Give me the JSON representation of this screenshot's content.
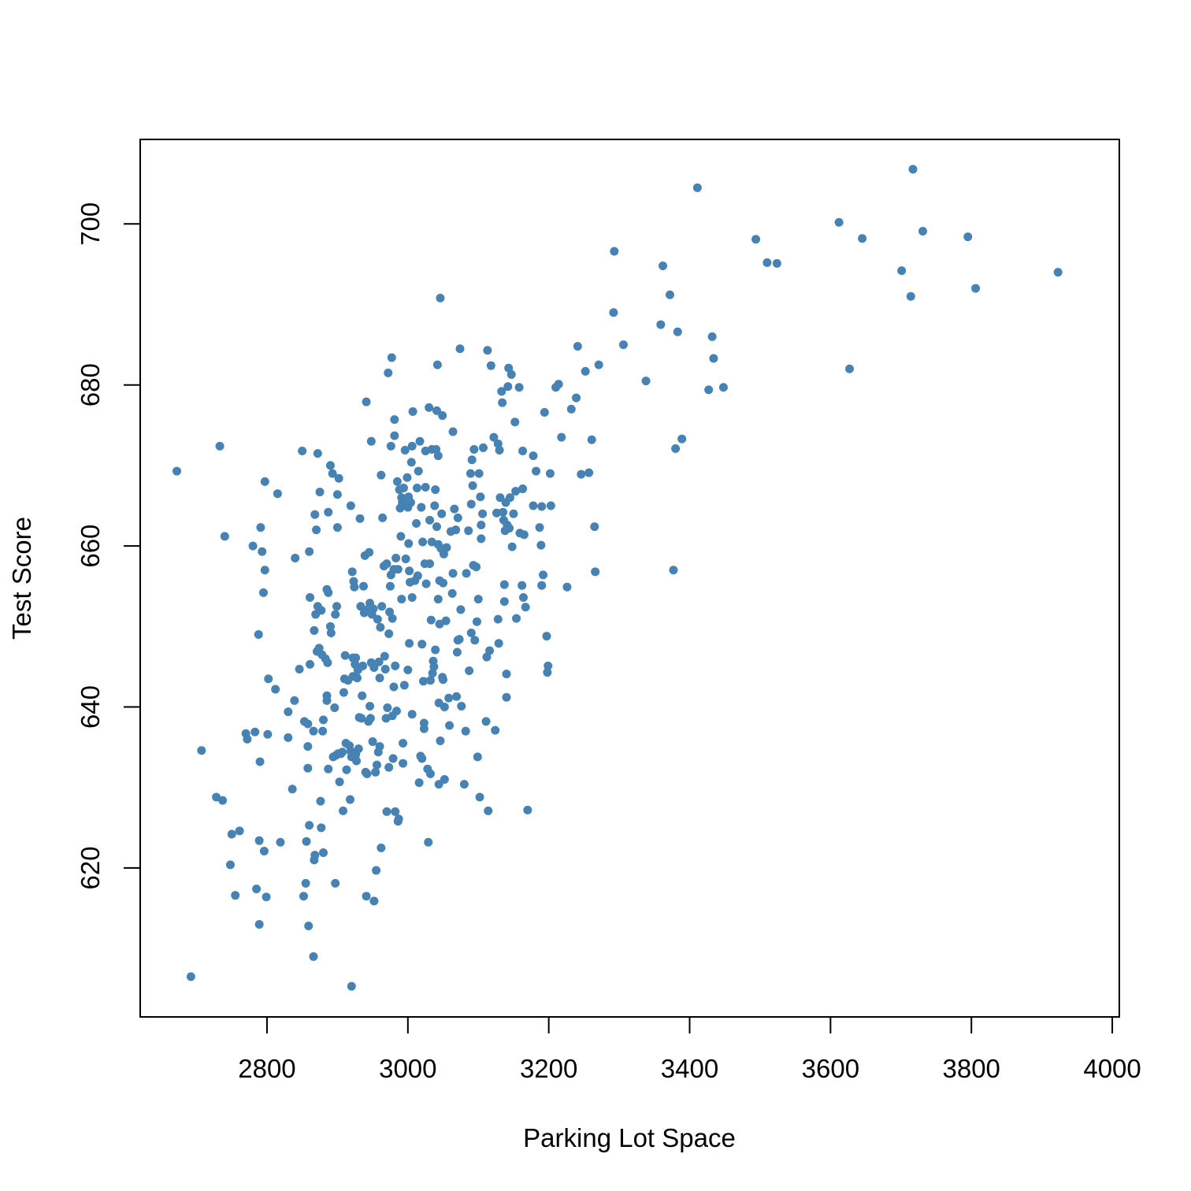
{
  "chart_data": {
    "type": "scatter",
    "title": "",
    "xlabel": "Parking Lot Space",
    "ylabel": "Test Score",
    "xlim": [
      2620,
      4010
    ],
    "ylim": [
      601.5,
      710.5
    ],
    "x_ticks": [
      2800,
      3000,
      3200,
      3400,
      3600,
      3800,
      4000
    ],
    "y_ticks": [
      620,
      640,
      660,
      680,
      700
    ],
    "x_tick_labels": [
      "2800",
      "3000",
      "3200",
      "3400",
      "3600",
      "3800",
      "4000"
    ],
    "y_tick_labels": [
      "620",
      "640",
      "660",
      "680",
      "700"
    ],
    "grid": false,
    "legend": "none",
    "colors": {
      "points": "#4682b4",
      "axes": "#000000"
    },
    "points": [
      [
        2672,
        669.3
      ],
      [
        2692,
        606.5
      ],
      [
        2707,
        634.6
      ],
      [
        2728,
        628.8
      ],
      [
        2733,
        672.4
      ],
      [
        2737,
        628.4
      ],
      [
        2740,
        661.2
      ],
      [
        2748,
        620.4
      ],
      [
        2750,
        624.2
      ],
      [
        2755,
        616.6
      ],
      [
        2761,
        624.6
      ],
      [
        2770,
        636.7
      ],
      [
        2772,
        636.0
      ],
      [
        2780,
        660.0
      ],
      [
        2783,
        636.9
      ],
      [
        2785,
        617.4
      ],
      [
        2788,
        649.0
      ],
      [
        2789,
        623.4
      ],
      [
        2789,
        613.0
      ],
      [
        2790,
        633.2
      ],
      [
        2791,
        662.3
      ],
      [
        2793,
        659.3
      ],
      [
        2795,
        654.2
      ],
      [
        2796,
        622.1
      ],
      [
        2797,
        657.0
      ],
      [
        2797,
        668.0
      ],
      [
        2799,
        616.4
      ],
      [
        2801,
        636.6
      ],
      [
        2802,
        643.5
      ],
      [
        2812,
        642.2
      ],
      [
        2815,
        666.5
      ],
      [
        2819,
        623.2
      ],
      [
        2830,
        636.2
      ],
      [
        2830,
        639.4
      ],
      [
        2836,
        629.8
      ],
      [
        2839,
        640.8
      ],
      [
        2840,
        658.5
      ],
      [
        2846,
        644.7
      ],
      [
        2850,
        671.8
      ],
      [
        2852,
        616.5
      ],
      [
        2853,
        638.2
      ],
      [
        2855,
        618.1
      ],
      [
        2856,
        623.3
      ],
      [
        2858,
        637.9
      ],
      [
        2858,
        632.4
      ],
      [
        2858,
        635.1
      ],
      [
        2859,
        612.8
      ],
      [
        2860,
        625.3
      ],
      [
        2860,
        659.3
      ],
      [
        2861,
        653.6
      ],
      [
        2861,
        645.3
      ],
      [
        2866,
        637.0
      ],
      [
        2866,
        609.0
      ],
      [
        2867,
        649.5
      ],
      [
        2867,
        621.0
      ],
      [
        2868,
        663.9
      ],
      [
        2868,
        621.6
      ],
      [
        2869,
        651.5
      ],
      [
        2870,
        662.0
      ],
      [
        2871,
        646.9
      ],
      [
        2872,
        652.5
      ],
      [
        2872,
        671.5
      ],
      [
        2874,
        647.3
      ],
      [
        2875,
        666.7
      ],
      [
        2876,
        628.3
      ],
      [
        2877,
        625.0
      ],
      [
        2877,
        652.0
      ],
      [
        2878,
        646.5
      ],
      [
        2879,
        637.0
      ],
      [
        2880,
        621.9
      ],
      [
        2880,
        638.4
      ],
      [
        2883,
        646.0
      ],
      [
        2885,
        640.8
      ],
      [
        2885,
        641.4
      ],
      [
        2885,
        654.6
      ],
      [
        2886,
        645.5
      ],
      [
        2887,
        632.3
      ],
      [
        2887,
        664.2
      ],
      [
        2887,
        654.2
      ],
      [
        2890,
        670.0
      ],
      [
        2890,
        650.0
      ],
      [
        2891,
        649.2
      ],
      [
        2893,
        669.0
      ],
      [
        2894,
        633.8
      ],
      [
        2896,
        639.9
      ],
      [
        2897,
        651.5
      ],
      [
        2897,
        618.1
      ],
      [
        2898,
        634.0
      ],
      [
        2899,
        652.5
      ],
      [
        2900,
        666.4
      ],
      [
        2900,
        662.3
      ],
      [
        2901,
        634.2
      ],
      [
        2902,
        668.4
      ],
      [
        2903,
        630.7
      ],
      [
        2905,
        634.2
      ],
      [
        2907,
        634.4
      ],
      [
        2908,
        627.1
      ],
      [
        2909,
        641.8
      ],
      [
        2910,
        643.5
      ],
      [
        2911,
        646.4
      ],
      [
        2912,
        635.5
      ],
      [
        2913,
        632.2
      ],
      [
        2915,
        643.3
      ],
      [
        2917,
        635.2
      ],
      [
        2918,
        628.5
      ],
      [
        2919,
        634.5
      ],
      [
        2919,
        665.0
      ],
      [
        2920,
        633.8
      ],
      [
        2920,
        605.3
      ],
      [
        2921,
        656.8
      ],
      [
        2922,
        643.8
      ],
      [
        2922,
        646.1
      ],
      [
        2923,
        655.6
      ],
      [
        2924,
        654.9
      ],
      [
        2925,
        645.3
      ],
      [
        2926,
        634.1
      ],
      [
        2926,
        646.1
      ],
      [
        2927,
        633.3
      ],
      [
        2928,
        643.6
      ],
      [
        2929,
        644.6
      ],
      [
        2930,
        634.8
      ],
      [
        2931,
        638.7
      ],
      [
        2932,
        663.4
      ],
      [
        2933,
        652.5
      ],
      [
        2934,
        638.6
      ],
      [
        2935,
        641.4
      ],
      [
        2936,
        645.1
      ],
      [
        2937,
        655.0
      ],
      [
        2938,
        651.7
      ],
      [
        2939,
        658.8
      ],
      [
        2940,
        631.9
      ],
      [
        2941,
        677.9
      ],
      [
        2941,
        616.5
      ],
      [
        2942,
        631.7
      ],
      [
        2943,
        652.1
      ],
      [
        2944,
        638.2
      ],
      [
        2945,
        659.2
      ],
      [
        2946,
        640.1
      ],
      [
        2946,
        652.9
      ],
      [
        2947,
        638.6
      ],
      [
        2948,
        673.0
      ],
      [
        2948,
        645.5
      ],
      [
        2949,
        651.5
      ],
      [
        2950,
        635.7
      ],
      [
        2951,
        652.2
      ],
      [
        2952,
        644.9
      ],
      [
        2952,
        615.9
      ],
      [
        2954,
        631.9
      ],
      [
        2955,
        619.7
      ],
      [
        2956,
        632.8
      ],
      [
        2957,
        650.9
      ],
      [
        2958,
        634.4
      ],
      [
        2959,
        645.6
      ],
      [
        2960,
        643.6
      ],
      [
        2960,
        635.1
      ],
      [
        2961,
        649.9
      ],
      [
        2962,
        622.5
      ],
      [
        2962,
        668.8
      ],
      [
        2963,
        652.5
      ],
      [
        2964,
        663.5
      ],
      [
        2966,
        657.5
      ],
      [
        2967,
        646.3
      ],
      [
        2968,
        644.7
      ],
      [
        2969,
        638.6
      ],
      [
        2970,
        627.0
      ],
      [
        2970,
        657.8
      ],
      [
        2971,
        639.9
      ],
      [
        2972,
        681.5
      ],
      [
        2973,
        649.1
      ],
      [
        2973,
        632.5
      ],
      [
        2974,
        651.8
      ],
      [
        2975,
        655.0
      ],
      [
        2976,
        656.4
      ],
      [
        2976,
        672.4
      ],
      [
        2977,
        683.4
      ],
      [
        2978,
        651.0
      ],
      [
        2978,
        638.9
      ],
      [
        2979,
        633.6
      ],
      [
        2980,
        642.5
      ],
      [
        2980,
        657.1
      ],
      [
        2981,
        675.7
      ],
      [
        2981,
        673.7
      ],
      [
        2982,
        627.0
      ],
      [
        2982,
        645.1
      ],
      [
        2983,
        658.5
      ],
      [
        2984,
        639.5
      ],
      [
        2985,
        668.0
      ],
      [
        2986,
        657.1
      ],
      [
        2986,
        625.8
      ],
      [
        2987,
        626.1
      ],
      [
        2988,
        667.0
      ],
      [
        2989,
        664.7
      ],
      [
        2990,
        661.2
      ],
      [
        2991,
        653.4
      ],
      [
        2991,
        666.0
      ],
      [
        2992,
        665.4
      ],
      [
        2993,
        633.0
      ],
      [
        2993,
        635.5
      ],
      [
        2994,
        667.2
      ],
      [
        2995,
        642.7
      ],
      [
        2996,
        671.9
      ],
      [
        2997,
        665.4
      ],
      [
        2997,
        658.4
      ],
      [
        2999,
        668.5
      ],
      [
        3000,
        664.8
      ],
      [
        3000,
        644.6
      ],
      [
        3001,
        660.3
      ],
      [
        3001,
        666.1
      ],
      [
        3002,
        647.9
      ],
      [
        3002,
        656.9
      ],
      [
        3003,
        655.5
      ],
      [
        3004,
        665.4
      ],
      [
        3005,
        670.4
      ],
      [
        3006,
        672.4
      ],
      [
        3006,
        639.1
      ],
      [
        3006,
        653.6
      ],
      [
        3007,
        676.7
      ],
      [
        3010,
        655.7
      ],
      [
        3012,
        662.8
      ],
      [
        3013,
        667.2
      ],
      [
        3014,
        656.3
      ],
      [
        3015,
        669.3
      ],
      [
        3016,
        630.6
      ],
      [
        3017,
        673.0
      ],
      [
        3018,
        633.9
      ],
      [
        3019,
        664.8
      ],
      [
        3020,
        647.8
      ],
      [
        3020,
        633.6
      ],
      [
        3021,
        660.5
      ],
      [
        3022,
        643.2
      ],
      [
        3023,
        638.0
      ],
      [
        3023,
        637.3
      ],
      [
        3024,
        657.8
      ],
      [
        3025,
        667.3
      ],
      [
        3025,
        671.8
      ],
      [
        3026,
        655.3
      ],
      [
        3028,
        632.3
      ],
      [
        3029,
        623.2
      ],
      [
        3030,
        677.2
      ],
      [
        3031,
        657.8
      ],
      [
        3031,
        663.2
      ],
      [
        3032,
        643.3
      ],
      [
        3032,
        631.7
      ],
      [
        3033,
        650.8
      ],
      [
        3034,
        660.5
      ],
      [
        3034,
        672.0
      ],
      [
        3035,
        644.2
      ],
      [
        3036,
        645.7
      ],
      [
        3037,
        645.0
      ],
      [
        3038,
        665.0
      ],
      [
        3039,
        667.0
      ],
      [
        3039,
        647.1
      ],
      [
        3040,
        672.0
      ],
      [
        3041,
        676.8
      ],
      [
        3041,
        662.4
      ],
      [
        3042,
        682.5
      ],
      [
        3043,
        660.2
      ],
      [
        3043,
        653.4
      ],
      [
        3043,
        671.2
      ],
      [
        3044,
        640.5
      ],
      [
        3044,
        630.4
      ],
      [
        3045,
        655.7
      ],
      [
        3045,
        650.3
      ],
      [
        3046,
        635.8
      ],
      [
        3046,
        690.8
      ],
      [
        3047,
        659.7
      ],
      [
        3048,
        664.0
      ],
      [
        3049,
        676.2
      ],
      [
        3049,
        643.7
      ],
      [
        3050,
        655.4
      ],
      [
        3050,
        643.4
      ],
      [
        3051,
        659.0
      ],
      [
        3052,
        640.0
      ],
      [
        3052,
        631.0
      ],
      [
        3054,
        650.7
      ],
      [
        3055,
        659.8
      ],
      [
        3058,
        641.1
      ],
      [
        3059,
        637.7
      ],
      [
        3061,
        661.8
      ],
      [
        3063,
        654.1
      ],
      [
        3064,
        674.2
      ],
      [
        3064,
        656.6
      ],
      [
        3066,
        664.6
      ],
      [
        3068,
        662.0
      ],
      [
        3069,
        641.3
      ],
      [
        3070,
        646.8
      ],
      [
        3071,
        648.3
      ],
      [
        3071,
        663.5
      ],
      [
        3073,
        648.4
      ],
      [
        3074,
        684.5
      ],
      [
        3075,
        652.1
      ],
      [
        3076,
        640.1
      ],
      [
        3080,
        630.4
      ],
      [
        3082,
        637.0
      ],
      [
        3083,
        656.6
      ],
      [
        3086,
        661.9
      ],
      [
        3087,
        644.5
      ],
      [
        3089,
        669.0
      ],
      [
        3090,
        665.2
      ],
      [
        3090,
        649.2
      ],
      [
        3091,
        670.7
      ],
      [
        3092,
        667.5
      ],
      [
        3093,
        657.6
      ],
      [
        3094,
        672.0
      ],
      [
        3095,
        648.3
      ],
      [
        3097,
        657.4
      ],
      [
        3098,
        650.6
      ],
      [
        3099,
        633.8
      ],
      [
        3100,
        653.4
      ],
      [
        3101,
        669.0
      ],
      [
        3102,
        628.8
      ],
      [
        3103,
        666.1
      ],
      [
        3104,
        662.6
      ],
      [
        3104,
        660.9
      ],
      [
        3106,
        664.0
      ],
      [
        3107,
        672.2
      ],
      [
        3111,
        638.2
      ],
      [
        3112,
        646.2
      ],
      [
        3113,
        684.3
      ],
      [
        3114,
        627.1
      ],
      [
        3116,
        647.0
      ],
      [
        3118,
        682.4
      ],
      [
        3122,
        673.5
      ],
      [
        3124,
        637.1
      ],
      [
        3126,
        664.1
      ],
      [
        3128,
        650.9
      ],
      [
        3128,
        672.7
      ],
      [
        3129,
        647.9
      ],
      [
        3130,
        671.9
      ],
      [
        3131,
        666.0
      ],
      [
        3133,
        679.2
      ],
      [
        3134,
        677.8
      ],
      [
        3135,
        664.2
      ],
      [
        3136,
        663.2
      ],
      [
        3137,
        655.2
      ],
      [
        3137,
        653.1
      ],
      [
        3138,
        661.9
      ],
      [
        3139,
        665.4
      ],
      [
        3140,
        644.1
      ],
      [
        3140,
        641.2
      ],
      [
        3141,
        662.6
      ],
      [
        3142,
        679.8
      ],
      [
        3143,
        682.1
      ],
      [
        3144,
        662.2
      ],
      [
        3145,
        666.0
      ],
      [
        3147,
        681.3
      ],
      [
        3148,
        659.9
      ],
      [
        3150,
        664.0
      ],
      [
        3152,
        675.4
      ],
      [
        3153,
        666.8
      ],
      [
        3154,
        651.0
      ],
      [
        3158,
        679.7
      ],
      [
        3159,
        661.6
      ],
      [
        3162,
        655.1
      ],
      [
        3163,
        671.8
      ],
      [
        3163,
        667.1
      ],
      [
        3164,
        653.6
      ],
      [
        3165,
        661.4
      ],
      [
        3167,
        652.4
      ],
      [
        3170,
        627.2
      ],
      [
        3178,
        671.2
      ],
      [
        3178,
        665.0
      ],
      [
        3182,
        669.3
      ],
      [
        3187,
        662.3
      ],
      [
        3189,
        660.1
      ],
      [
        3190,
        655.1
      ],
      [
        3190,
        664.9
      ],
      [
        3192,
        656.4
      ],
      [
        3194,
        676.6
      ],
      [
        3197,
        648.8
      ],
      [
        3198,
        644.3
      ],
      [
        3199,
        645.1
      ],
      [
        3202,
        669.0
      ],
      [
        3203,
        665.0
      ],
      [
        3210,
        679.7
      ],
      [
        3214,
        680.1
      ],
      [
        3218,
        673.5
      ],
      [
        3226,
        654.9
      ],
      [
        3232,
        677.0
      ],
      [
        3239,
        678.4
      ],
      [
        3241,
        684.8
      ],
      [
        3246,
        668.9
      ],
      [
        3252,
        681.7
      ],
      [
        3257,
        669.1
      ],
      [
        3261,
        673.2
      ],
      [
        3265,
        662.4
      ],
      [
        3266,
        656.8
      ],
      [
        3271,
        682.5
      ],
      [
        3292,
        689.0
      ],
      [
        3293,
        696.6
      ],
      [
        3306,
        685.0
      ],
      [
        3338,
        680.5
      ],
      [
        3359,
        687.5
      ],
      [
        3362,
        694.8
      ],
      [
        3372,
        691.2
      ],
      [
        3377,
        657.0
      ],
      [
        3380,
        672.1
      ],
      [
        3383,
        686.6
      ],
      [
        3389,
        673.3
      ],
      [
        3411,
        704.5
      ],
      [
        3427,
        679.4
      ],
      [
        3432,
        686.0
      ],
      [
        3434,
        683.3
      ],
      [
        3448,
        679.7
      ],
      [
        3494,
        698.1
      ],
      [
        3510,
        695.2
      ],
      [
        3524,
        695.1
      ],
      [
        3612,
        700.2
      ],
      [
        3627,
        682.0
      ],
      [
        3645,
        698.2
      ],
      [
        3701,
        694.2
      ],
      [
        3714,
        691.0
      ],
      [
        3717,
        706.8
      ],
      [
        3731,
        699.1
      ],
      [
        3795,
        698.4
      ],
      [
        3806,
        692.0
      ],
      [
        3923,
        694.0
      ]
    ]
  }
}
